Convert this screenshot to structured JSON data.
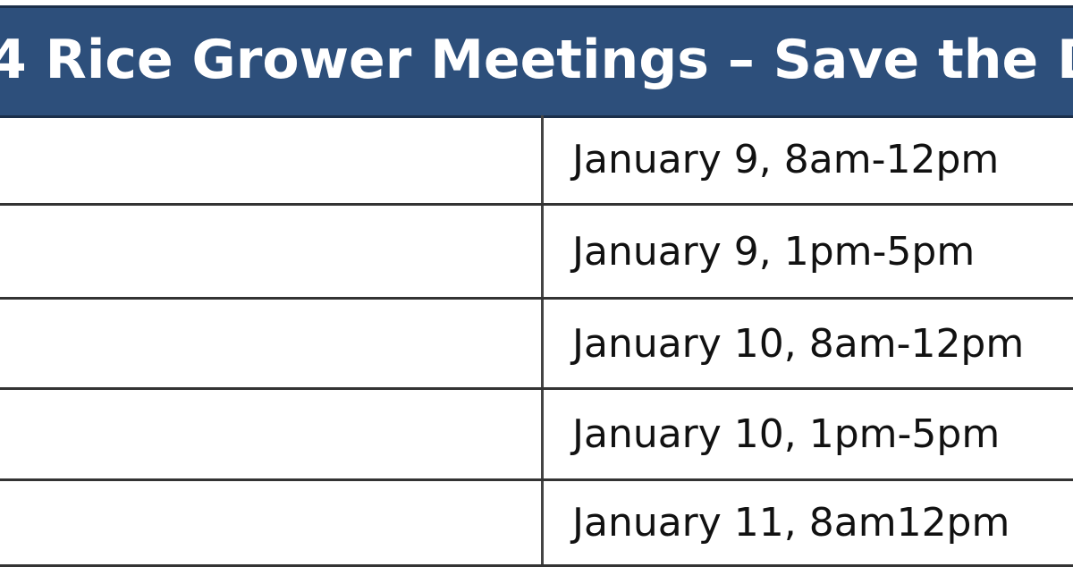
{
  "header": {
    "title": "4 Rice Grower Meetings – Save the D",
    "background_color": "#2d4f7b"
  },
  "rows": [
    {
      "location": "",
      "datetime": "January 9, 8am-12pm"
    },
    {
      "location": "",
      "datetime": "January 9, 1pm-5pm"
    },
    {
      "location": "",
      "datetime": "January 10, 8am-12pm"
    },
    {
      "location": "",
      "datetime": "January 10, 1pm-5pm"
    },
    {
      "location": "",
      "datetime": "January 11, 8am12pm"
    }
  ]
}
